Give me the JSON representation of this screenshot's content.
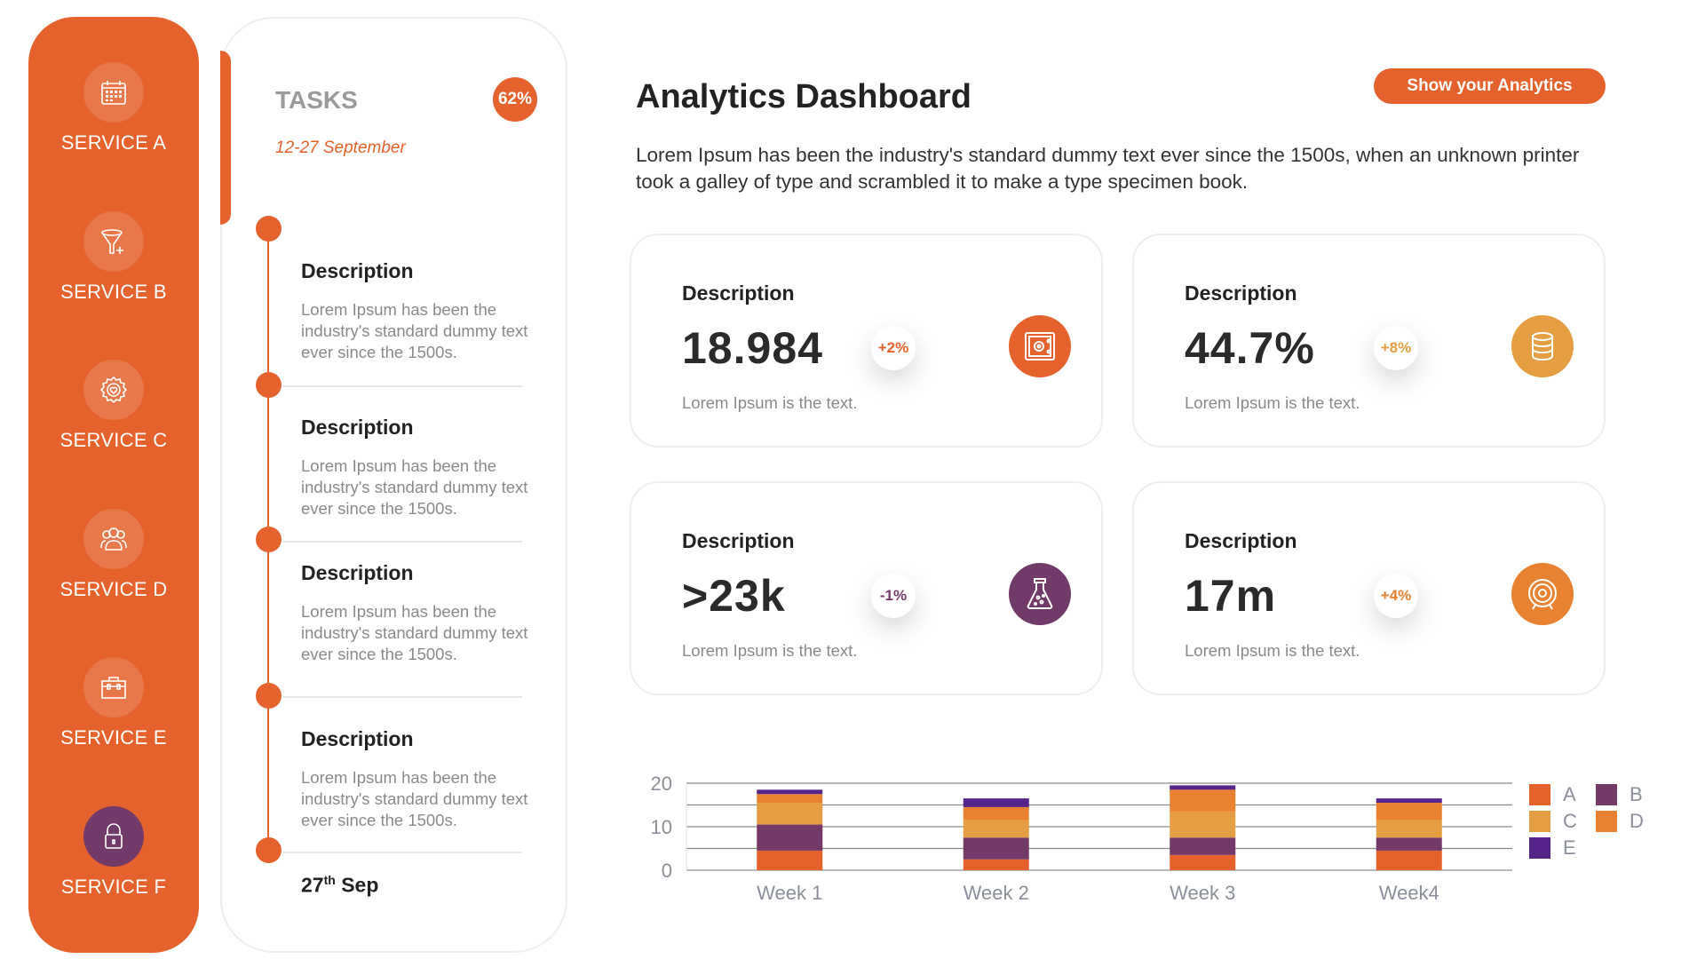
{
  "sidebar": {
    "items": [
      {
        "label": "SERVICE A",
        "icon": "calendar-icon",
        "active": false
      },
      {
        "label": "SERVICE B",
        "icon": "funnel-plus-icon",
        "active": false
      },
      {
        "label": "SERVICE C",
        "icon": "gear-heart-icon",
        "active": false
      },
      {
        "label": "SERVICE D",
        "icon": "users-icon",
        "active": false
      },
      {
        "label": "SERVICE E",
        "icon": "toolbox-icon",
        "active": false
      },
      {
        "label": "SERVICE F",
        "icon": "lock-icon",
        "active": true
      }
    ]
  },
  "tasks": {
    "title": "TASKS",
    "progress": "62%",
    "date_range": "12-27 September",
    "items": [
      {
        "title": "Description",
        "text": "Lorem Ipsum has been the industry's standard dummy text ever since the 1500s."
      },
      {
        "title": "Description",
        "text": "Lorem Ipsum has been the industry's standard dummy text ever since the 1500s."
      },
      {
        "title": "Description",
        "text": "Lorem Ipsum has been the industry's standard dummy text ever since the 1500s."
      },
      {
        "title": "Description",
        "text": "Lorem Ipsum has been the industry's standard dummy text ever since the 1500s."
      }
    ],
    "end_day": "27",
    "end_suffix": "th",
    "end_month": "Sep"
  },
  "header": {
    "title": "Analytics Dashboard",
    "button": "Show your Analytics",
    "intro": "Lorem Ipsum has been the industry's standard dummy text ever since the 1500s, when an unknown printer took a galley of type and scrambled it to make a type specimen book."
  },
  "cards": [
    {
      "title": "Description",
      "value": "18.984",
      "change": "+2%",
      "change_color": "#E5622D",
      "icon": "safe-icon",
      "icon_color": "#E5622D",
      "subtitle": "Lorem Ipsum is the text."
    },
    {
      "title": "Description",
      "value": "44.7%",
      "change": "+8%",
      "change_color": "#E59E42",
      "icon": "coins-stack-icon",
      "icon_color": "#E59E42",
      "subtitle": "Lorem Ipsum is the text."
    },
    {
      "title": "Description",
      "value": ">23k",
      "change": "-1%",
      "change_color": "#723A68",
      "icon": "flask-icon",
      "icon_color": "#723A68",
      "subtitle": "Lorem Ipsum is the text."
    },
    {
      "title": "Description",
      "value": "17m",
      "change": "+4%",
      "change_color": "#E98230",
      "icon": "target-icon",
      "icon_color": "#E98230",
      "subtitle": "Lorem Ipsum is the text."
    }
  ],
  "colors": {
    "accent": "#E5622D",
    "purple": "#723A68"
  },
  "chart_data": {
    "type": "bar",
    "stacked": true,
    "categories": [
      "Week 1",
      "Week 2",
      "Week 3",
      "Week4"
    ],
    "series": [
      {
        "name": "A",
        "color": "#E5622D",
        "values": [
          4.5,
          2.5,
          3.5,
          4.5
        ]
      },
      {
        "name": "B",
        "color": "#733A67",
        "values": [
          6,
          5,
          4,
          3
        ]
      },
      {
        "name": "C",
        "color": "#E59E42",
        "values": [
          5,
          4,
          6,
          4
        ]
      },
      {
        "name": "D",
        "color": "#E98230",
        "values": [
          2,
          3,
          5,
          4
        ]
      },
      {
        "name": "E",
        "color": "#562488",
        "values": [
          1,
          2,
          1,
          1
        ]
      }
    ],
    "yticks": [
      "0",
      "10",
      "20"
    ],
    "ylim": [
      0,
      20
    ],
    "grid": true,
    "legend": "right"
  }
}
